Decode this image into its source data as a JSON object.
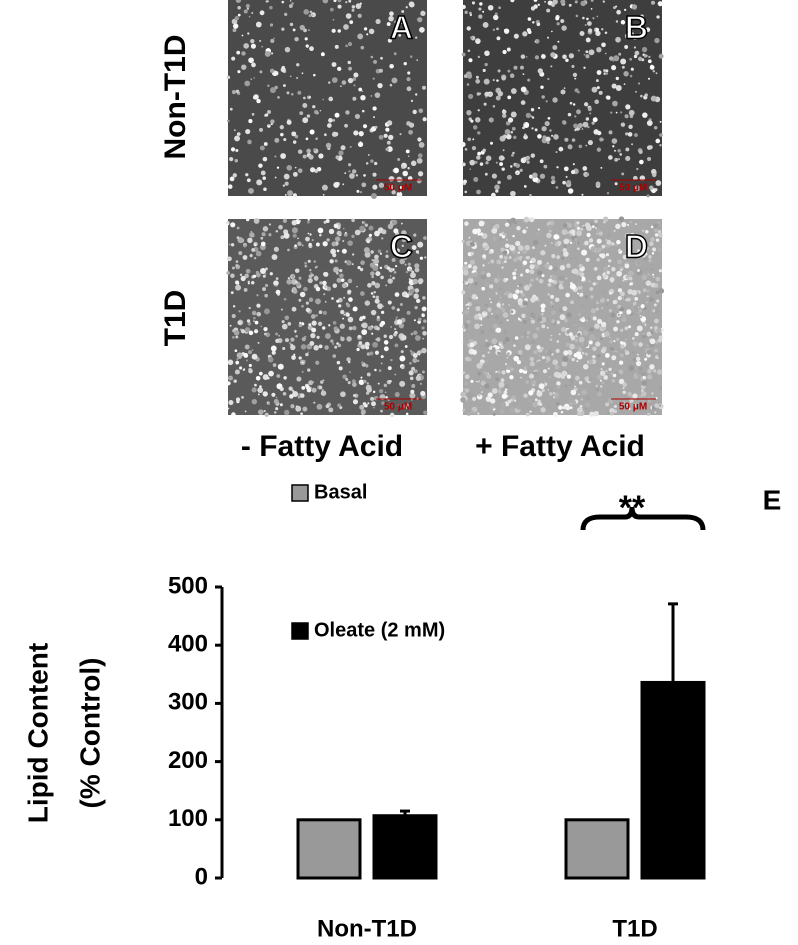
{
  "image_panels": {
    "row_labels": [
      "Non-T1D",
      "T1D"
    ],
    "column_labels": [
      "- Fatty Acid",
      "+ Fatty Acid"
    ],
    "panels": [
      {
        "label": "A",
        "scale_bar": "50 μM"
      },
      {
        "label": "B",
        "scale_bar": "50 μM"
      },
      {
        "label": "C",
        "scale_bar": "50 μM"
      },
      {
        "label": "D",
        "scale_bar": "50 μM"
      }
    ]
  },
  "chart_data": {
    "type": "bar",
    "panel_label": "E",
    "annotation": "**",
    "y_label_lines": [
      "Lipid Content",
      "(% Control)"
    ],
    "categories": [
      "Non-T1D",
      "T1D"
    ],
    "series": [
      {
        "name": "Basal",
        "color": "#999999",
        "values": [
          100,
          100
        ]
      },
      {
        "name": "Oleate (2 mM)",
        "color": "#000000",
        "values": [
          107,
          336
        ],
        "errors": [
          8,
          135
        ]
      }
    ],
    "ylim": [
      0,
      500
    ],
    "yticks": [
      0,
      100,
      200,
      300,
      400,
      500
    ]
  }
}
